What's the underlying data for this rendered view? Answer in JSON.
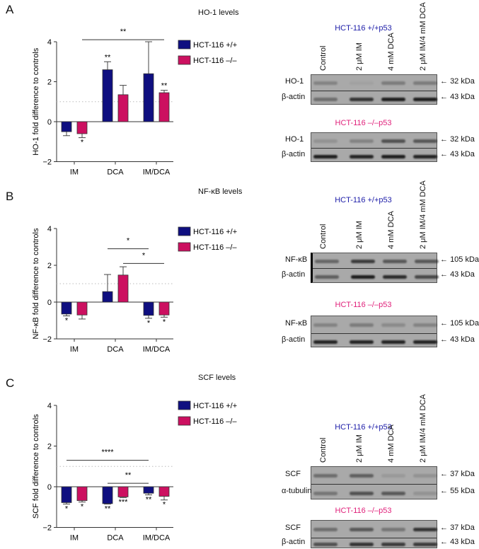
{
  "lanes": [
    "Control",
    "2 μM IM",
    "4 mM DCA",
    "2 μM IM/4 mM DCA"
  ],
  "colors": {
    "wt": "#0f0f80",
    "ko": "#cc1060",
    "wt_title": "#1c1ca8",
    "ko_title": "#e0207a"
  },
  "panels": [
    {
      "letter": "A",
      "title": "HO-1 levels",
      "blots": [
        {
          "title": "HCT-116 +/+p53",
          "rows": [
            {
              "label": "HO-1",
              "kda": "32 kDa"
            },
            {
              "label": "β-actin",
              "kda": "43 kDa"
            }
          ]
        },
        {
          "title": "HCT-116 –/–p53",
          "rows": [
            {
              "label": "HO-1",
              "kda": "32 kDa"
            },
            {
              "label": "β-actin",
              "kda": "43 kDa"
            }
          ]
        }
      ]
    },
    {
      "letter": "B",
      "title": "NF-κB levels",
      "blots": [
        {
          "title": "HCT-116 +/+p53",
          "rows": [
            {
              "label": "NF-κB",
              "kda": "105 kDa"
            },
            {
              "label": "β-actin",
              "kda": "43 kDa"
            }
          ]
        },
        {
          "title": "HCT-116 –/–p53",
          "rows": [
            {
              "label": "NF-κB",
              "kda": "105 kDa"
            },
            {
              "label": "β-actin",
              "kda": "43 kDa"
            }
          ]
        }
      ]
    },
    {
      "letter": "C",
      "title": "SCF levels",
      "blots": [
        {
          "title": "HCT-116 +/+p53",
          "rows": [
            {
              "label": "SCF",
              "kda": "37 kDa"
            },
            {
              "label": "α-tubulin",
              "kda": "55 kDa"
            }
          ]
        },
        {
          "title": "HCT-116 –/–p53",
          "rows": [
            {
              "label": "SCF",
              "kda": "37 kDa"
            },
            {
              "label": "β-actin",
              "kda": "43 kDa"
            }
          ]
        }
      ]
    }
  ],
  "chart_data": [
    {
      "type": "bar",
      "title": "HO-1 levels",
      "ylabel": "HO-1 fold difference to controls",
      "xlabel": "",
      "categories": [
        "IM",
        "DCA",
        "IM/DCA"
      ],
      "ylim": [
        -2,
        4
      ],
      "yticks": [
        "4",
        "2",
        "0",
        "−2"
      ],
      "yticks_values": [
        4,
        2,
        0,
        -2
      ],
      "reference_line": 1,
      "legend": "top-right",
      "series": [
        {
          "name": "HCT-116 +/+",
          "values": [
            -0.5,
            2.6,
            2.4
          ],
          "error_ends": [
            -0.7,
            3.0,
            4.0
          ],
          "significance": [
            "",
            "**",
            ""
          ]
        },
        {
          "name": "HCT-116 –/–",
          "values": [
            -0.6,
            1.35,
            1.45
          ],
          "error_ends": [
            -0.8,
            1.82,
            1.57
          ],
          "significance": [
            "*",
            "",
            "**"
          ]
        }
      ],
      "brackets": [
        {
          "from": [
            0,
            1
          ],
          "to": [
            2,
            1
          ],
          "y": 4.1,
          "label": "**"
        }
      ]
    },
    {
      "type": "bar",
      "title": "NF-κB levels",
      "ylabel": "NF-κB fold difference to controls",
      "xlabel": "",
      "categories": [
        "IM",
        "DCA",
        "IM/DCA"
      ],
      "ylim": [
        -2,
        4
      ],
      "yticks": [
        "4",
        "2",
        "0",
        "−2"
      ],
      "yticks_values": [
        4,
        2,
        0,
        -2
      ],
      "reference_line": 1,
      "legend": "top-right",
      "series": [
        {
          "name": "HCT-116 +/+",
          "values": [
            -0.65,
            0.57,
            -0.72
          ],
          "error_ends": [
            -0.75,
            1.5,
            -0.88
          ],
          "significance": [
            "*",
            "",
            "*"
          ]
        },
        {
          "name": "HCT-116 –/–",
          "values": [
            -0.7,
            1.47,
            -0.7
          ],
          "error_ends": [
            -0.92,
            1.92,
            -0.82
          ],
          "significance": [
            "",
            "",
            "*"
          ]
        }
      ],
      "brackets": [
        {
          "from": [
            1,
            0
          ],
          "to": [
            2,
            0
          ],
          "y": 2.9,
          "label": "*"
        },
        {
          "from": [
            1,
            1
          ],
          "to": [
            2,
            1
          ],
          "y": 2.1,
          "label": "*"
        }
      ]
    },
    {
      "type": "bar",
      "title": "SCF levels",
      "ylabel": "SCF fold difference to controls",
      "xlabel": "",
      "categories": [
        "IM",
        "DCA",
        "IM/DCA"
      ],
      "ylim": [
        -2,
        4
      ],
      "yticks": [
        "4",
        "2",
        "0",
        "−2"
      ],
      "yticks_values": [
        4,
        2,
        0,
        -2
      ],
      "reference_line": 1,
      "legend": "top-right",
      "series": [
        {
          "name": "HCT-116 +/+",
          "values": [
            -0.78,
            -0.83,
            -0.32
          ],
          "error_ends": [
            -0.85,
            -0.85,
            -0.4
          ],
          "significance": [
            "*",
            "**",
            "**"
          ]
        },
        {
          "name": "HCT-116 –/–",
          "values": [
            -0.68,
            -0.5,
            -0.47
          ],
          "error_ends": [
            -0.75,
            -0.53,
            -0.65
          ],
          "significance": [
            "*",
            "***",
            "*"
          ]
        }
      ],
      "brackets": [
        {
          "from": [
            0,
            0
          ],
          "to": [
            2,
            0
          ],
          "y": 1.3,
          "label": "****"
        },
        {
          "from": [
            1,
            0
          ],
          "to": [
            2,
            0
          ],
          "y": 0.17,
          "label": "**"
        }
      ]
    }
  ]
}
